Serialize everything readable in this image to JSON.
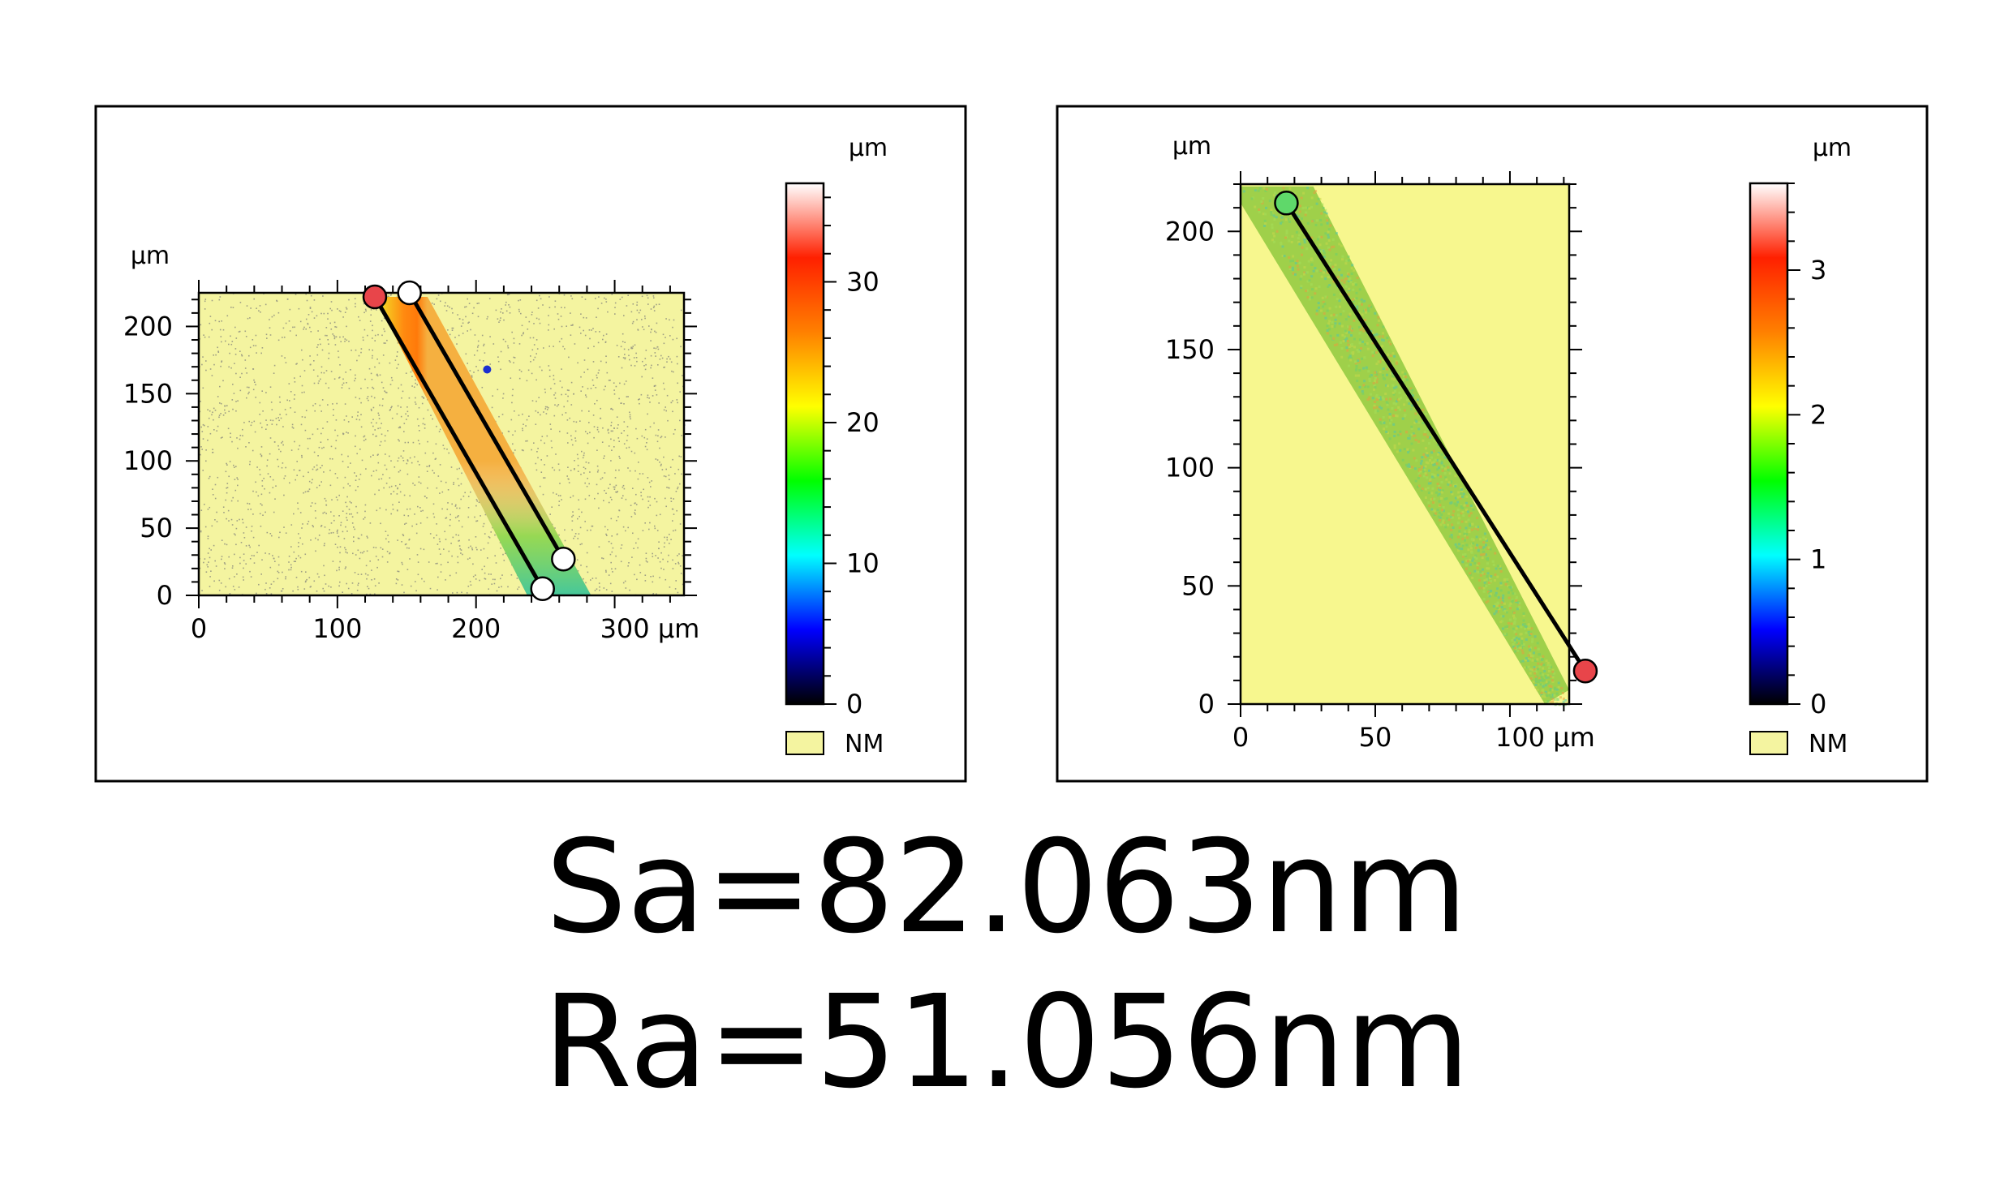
{
  "result_lines": {
    "sa": "Sa=82.063nm",
    "ra": "Ra=51.056nm"
  },
  "chart_data": [
    {
      "type": "heatmap",
      "title": "",
      "x_label": "µm",
      "y_label": "µm",
      "xlim": [
        0,
        350
      ],
      "ylim": [
        0,
        225
      ],
      "x_ticks": [
        {
          "value": 0,
          "label": "0"
        },
        {
          "value": 100,
          "label": "100"
        },
        {
          "value": 200,
          "label": "200"
        },
        {
          "value": 300,
          "label": "300 µm"
        }
      ],
      "y_ticks": [
        {
          "value": 0,
          "label": "0"
        },
        {
          "value": 50,
          "label": "50"
        },
        {
          "value": 100,
          "label": "100"
        },
        {
          "value": 150,
          "label": "150"
        },
        {
          "value": 200,
          "label": "200"
        }
      ],
      "background_color": "#f4f4a0",
      "noise_color": "#5a5a6e",
      "stripe": {
        "top_left": [
          127,
          222
        ],
        "top_right": [
          165,
          222
        ],
        "bottom_right": [
          283,
          0
        ],
        "bottom_left": [
          237,
          0
        ],
        "height_center_top": 28,
        "height_center_bottom": 14
      },
      "outlier_point": [
        208,
        168
      ],
      "profile_lines": [
        {
          "start": [
            127,
            222
          ],
          "end": [
            248,
            5
          ],
          "start_marker": "red",
          "end_marker": "white"
        },
        {
          "start": [
            152,
            225
          ],
          "end": [
            263,
            27
          ],
          "start_marker": "white",
          "end_marker": "white"
        }
      ],
      "colorbar": {
        "unit": "µm",
        "min": 0,
        "max": 37,
        "ticks": [
          {
            "value": 0,
            "label": "0"
          },
          {
            "value": 10,
            "label": "10"
          },
          {
            "value": 20,
            "label": "20"
          },
          {
            "value": 30,
            "label": "30"
          }
        ],
        "gradient_stops": [
          "#000000",
          "#0000ff",
          "#00ffff",
          "#00ff00",
          "#ffff00",
          "#ff8000",
          "#ff2000",
          "#ffffff"
        ]
      },
      "legend": {
        "label": "NM",
        "color": "#f4f4a0",
        "placement": "below-colorbar"
      }
    },
    {
      "type": "heatmap",
      "title": "",
      "x_label": "µm",
      "y_label": "µm",
      "xlim": [
        0,
        122
      ],
      "ylim": [
        0,
        220
      ],
      "x_ticks": [
        {
          "value": 0,
          "label": "0"
        },
        {
          "value": 50,
          "label": "50"
        },
        {
          "value": 100,
          "label": "100 µm"
        }
      ],
      "y_ticks": [
        {
          "value": 0,
          "label": "0"
        },
        {
          "value": 50,
          "label": "50"
        },
        {
          "value": 100,
          "label": "100"
        },
        {
          "value": 150,
          "label": "150"
        },
        {
          "value": 200,
          "label": "200"
        }
      ],
      "background_color": "#f7f78e",
      "band_color": "#9fd04a",
      "band": {
        "top_left": [
          0,
          219
        ],
        "top_right": [
          27,
          219
        ],
        "bottom_right": [
          122,
          6
        ],
        "bottom_left": [
          113,
          0
        ],
        "step": [
          0,
          212
        ]
      },
      "profile_lines": [
        {
          "start": [
            17,
            212
          ],
          "end": [
            128,
            14
          ],
          "start_marker": "green",
          "end_marker": "red"
        }
      ],
      "colorbar": {
        "unit": "µm",
        "min": 0,
        "max": 3.6,
        "ticks": [
          {
            "value": 0,
            "label": "0"
          },
          {
            "value": 1,
            "label": "1"
          },
          {
            "value": 2,
            "label": "2"
          },
          {
            "value": 3,
            "label": "3"
          }
        ],
        "gradient_stops": [
          "#000000",
          "#0000ff",
          "#00ffff",
          "#00ff00",
          "#ffff00",
          "#ff8000",
          "#ff2000",
          "#ffffff"
        ]
      },
      "legend": {
        "label": "NM",
        "color": "#f4f4a0",
        "placement": "below-colorbar"
      }
    }
  ]
}
